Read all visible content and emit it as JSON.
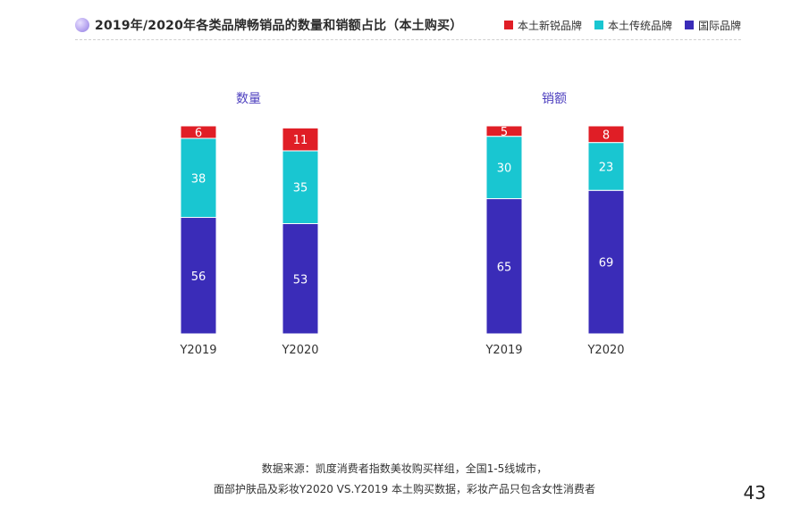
{
  "header": {
    "title": "2019年/2020年各类品牌畅销品的数量和销额占比（本土购买）"
  },
  "legend": [
    {
      "label": "本土新锐品牌",
      "color": "#e01e26"
    },
    {
      "label": "本土传统品牌",
      "color": "#19c6d1"
    },
    {
      "label": "国际品牌",
      "color": "#3a2cb8"
    }
  ],
  "chart_data": [
    {
      "type": "bar",
      "stacked": true,
      "title": "数量",
      "categories": [
        "Y2019",
        "Y2020"
      ],
      "series": [
        {
          "name": "国际品牌",
          "values": [
            56,
            53
          ],
          "color": "#3a2cb8"
        },
        {
          "name": "本土传统品牌",
          "values": [
            38,
            35
          ],
          "color": "#19c6d1"
        },
        {
          "name": "本土新锐品牌",
          "values": [
            6,
            11
          ],
          "color": "#e01e26"
        }
      ],
      "ylim": [
        0,
        100
      ]
    },
    {
      "type": "bar",
      "stacked": true,
      "title": "销额",
      "categories": [
        "Y2019",
        "Y2020"
      ],
      "series": [
        {
          "name": "国际品牌",
          "values": [
            65,
            69
          ],
          "color": "#3a2cb8"
        },
        {
          "name": "本土传统品牌",
          "values": [
            30,
            23
          ],
          "color": "#19c6d1"
        },
        {
          "name": "本土新锐品牌",
          "values": [
            5,
            8
          ],
          "color": "#e01e26"
        }
      ],
      "ylim": [
        0,
        100
      ]
    }
  ],
  "footnote": {
    "line1": "数据来源：凯度消费者指数美妆购买样组，全国1-5线城市，",
    "line2": "面部护肤品及彩妆Y2020 VS.Y2019 本土购买数据，彩妆产品只包含女性消费者"
  },
  "page_number": "43"
}
